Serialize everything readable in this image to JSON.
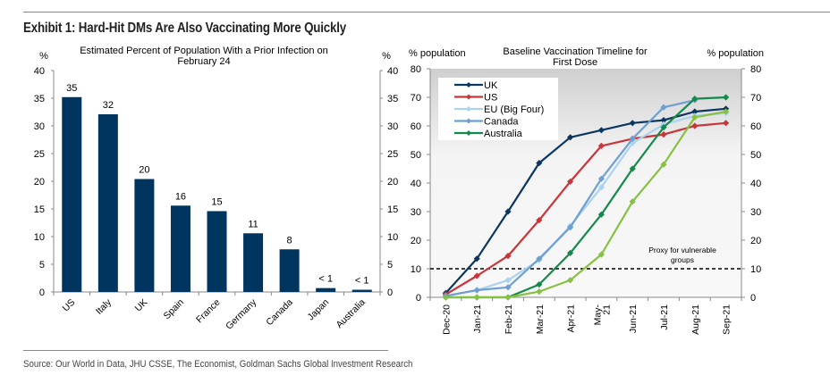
{
  "header": {
    "title": "Exhibit 1: Hard-Hit DMs Are Also Vaccinating More Quickly"
  },
  "footer": {
    "source": "Source: Our World in Data, JHU CSSE, The Economist, Goldman Sachs Global Investment Research"
  },
  "colors": {
    "bar": "#003560",
    "uk": "#0b3660",
    "us": "#c8353a",
    "eu": "#a9d3f0",
    "canada": "#6f9fd1",
    "australia": "#138a4a",
    "unlabeled": "#86c142"
  },
  "chart_data": [
    {
      "type": "bar",
      "title": "Estimated Percent of Population With a Prior Infection on February 24",
      "title_lines": [
        "Estimated Percent of Population With a Prior Infection on",
        "February 24"
      ],
      "ylabel_left": "%",
      "ylabel_right": "%",
      "ylim": [
        0,
        40
      ],
      "yticks": [
        0,
        5,
        10,
        15,
        20,
        25,
        30,
        35,
        40
      ],
      "categories": [
        "US",
        "Italy",
        "UK",
        "Spain",
        "France",
        "Germany",
        "Canada",
        "Japan",
        "Australia"
      ],
      "values": [
        35.2,
        32.1,
        20.4,
        15.6,
        14.6,
        10.6,
        7.7,
        0.7,
        0.4
      ],
      "data_labels": [
        "35",
        "32",
        "20",
        "16",
        "15",
        "11",
        "8",
        "< 1",
        "< 1"
      ],
      "grid": false
    },
    {
      "type": "line",
      "title": "Baseline Vaccination Timeline for First Dose",
      "title_lines": [
        "Baseline Vaccination Timeline for",
        "First Dose"
      ],
      "ylabel_left": "% population",
      "ylabel_right": "%  population",
      "ylim": [
        0,
        80
      ],
      "yticks": [
        0,
        10,
        20,
        30,
        40,
        50,
        60,
        70,
        80
      ],
      "x": [
        "Dec-20",
        "Jan-21",
        "Feb-21",
        "Mar-21",
        "Apr-21",
        "May-21",
        "Jun-21",
        "Jul-21",
        "Aug-21",
        "Sep-21"
      ],
      "x_tick_lines": [
        [
          "Dec-20"
        ],
        [
          "Jan-21"
        ],
        [
          "Feb-21"
        ],
        [
          "Mar-21"
        ],
        [
          "Apr-21"
        ],
        [
          "May-",
          "21"
        ],
        [
          "Jun-21"
        ],
        [
          "Jul-21"
        ],
        [
          "Aug-21"
        ],
        [
          "Sep-21"
        ]
      ],
      "series": [
        {
          "name": "UK",
          "key": "uk",
          "in_legend": true,
          "values": [
            1.5,
            13.5,
            30,
            47,
            56,
            58.5,
            61,
            62,
            65,
            66
          ]
        },
        {
          "name": "US",
          "key": "us",
          "in_legend": true,
          "values": [
            1,
            7.5,
            14.5,
            27,
            40.5,
            53,
            55.5,
            57,
            60,
            61
          ]
        },
        {
          "name": "EU (Big Four)",
          "key": "eu",
          "in_legend": true,
          "values": [
            0.5,
            2.5,
            6,
            13,
            25,
            38.5,
            54,
            60.5,
            63.5,
            64.5
          ]
        },
        {
          "name": "Canada",
          "key": "canada",
          "in_legend": true,
          "values": [
            0.5,
            2.5,
            3.5,
            13.5,
            24.5,
            41.5,
            55.5,
            66.5,
            69,
            null
          ]
        },
        {
          "name": "Australia",
          "key": "australia",
          "in_legend": true,
          "values": [
            0,
            0,
            0,
            4.5,
            15.5,
            29,
            45,
            59.5,
            69.5,
            70
          ]
        },
        {
          "name": "",
          "key": "unlabeled",
          "in_legend": false,
          "values": [
            0,
            0,
            0,
            2,
            6,
            15,
            33.5,
            46.5,
            63,
            65
          ]
        }
      ],
      "reference_line": {
        "y": 10,
        "style": "dashed",
        "label_lines": [
          "Proxy for vulnerable",
          "groups"
        ]
      },
      "legend": "top-left",
      "background": "gradient grey (top) to light grey (bottom)"
    }
  ]
}
